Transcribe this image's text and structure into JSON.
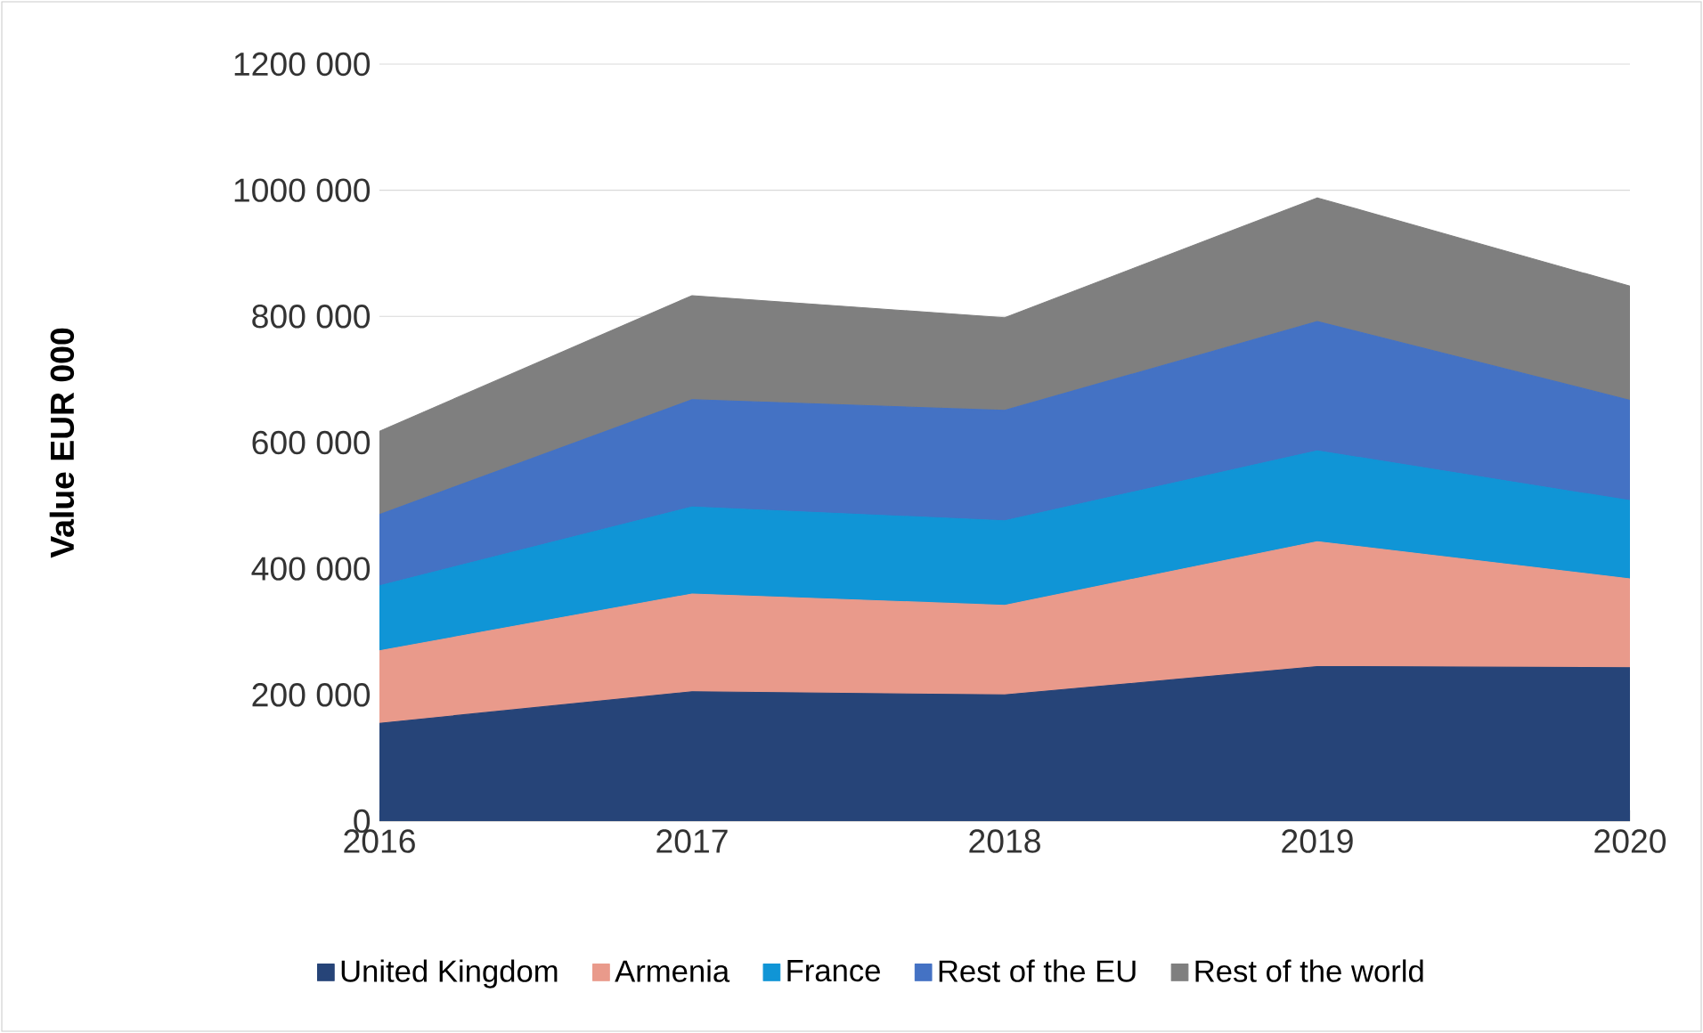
{
  "chart_data": {
    "type": "area",
    "stacked": true,
    "ylabel": "Value EUR 000",
    "x": [
      2016,
      2017,
      2018,
      2019,
      2020
    ],
    "xlim": [
      2016,
      2020
    ],
    "xticks": [
      2016,
      2017,
      2018,
      2019,
      2020
    ],
    "ylim": [
      0,
      1200000
    ],
    "yticks": [
      {
        "value": 0,
        "label": "0"
      },
      {
        "value": 200000,
        "label": "200 000"
      },
      {
        "value": 400000,
        "label": "400 000"
      },
      {
        "value": 600000,
        "label": "600 000"
      },
      {
        "value": 800000,
        "label": "800 000"
      },
      {
        "value": 1000000,
        "label": "1000 000"
      },
      {
        "value": 1200000,
        "label": "1200 000"
      }
    ],
    "grid": "y",
    "legend": "bottom",
    "series": [
      {
        "name": "United Kingdom",
        "color": "#264478",
        "values": [
          155000,
          205000,
          200000,
          245000,
          243000
        ]
      },
      {
        "name": "Armenia",
        "color": "#e99a8b",
        "values": [
          115000,
          155000,
          142000,
          198000,
          141000
        ]
      },
      {
        "name": "France",
        "color": "#1095d6",
        "values": [
          103000,
          138000,
          134000,
          144000,
          124000
        ]
      },
      {
        "name": "Rest of the EU",
        "color": "#4472c4",
        "values": [
          113000,
          170000,
          175000,
          205000,
          159000
        ]
      },
      {
        "name": "Rest of the world",
        "color": "#7f7f7f",
        "values": [
          132000,
          165000,
          147000,
          196000,
          181000
        ]
      }
    ]
  }
}
